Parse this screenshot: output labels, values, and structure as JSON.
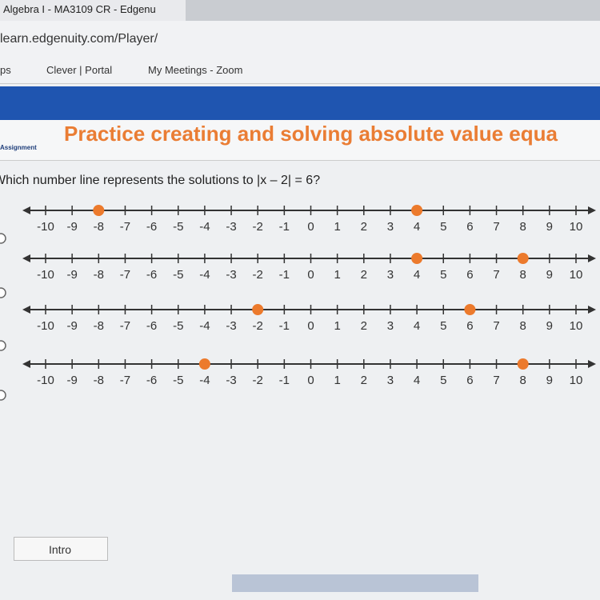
{
  "browser": {
    "tab_title": "Algebra I - MA3109 CR - Edgenu",
    "address": "learn.edgenuity.com/Player/",
    "bookmarks": [
      "ps",
      "Clever | Portal",
      "My Meetings - Zoom"
    ]
  },
  "header": {
    "badge": "Assignment",
    "title": "Practice creating and solving absolute value equa"
  },
  "question": "Which number line represents the solutions to |x – 2| = 6?",
  "number_line": {
    "ticks": [
      -10,
      -9,
      -8,
      -7,
      -6,
      -5,
      -4,
      -3,
      -2,
      -1,
      0,
      1,
      2,
      3,
      4,
      5,
      6,
      7,
      8,
      9,
      10
    ],
    "point_color": "#ec7a2c"
  },
  "options": [
    {
      "points": [
        -8,
        4
      ]
    },
    {
      "points": [
        4,
        8
      ]
    },
    {
      "points": [
        -2,
        6
      ]
    },
    {
      "points": [
        -4,
        8
      ]
    }
  ],
  "footer": {
    "intro": "Intro"
  }
}
